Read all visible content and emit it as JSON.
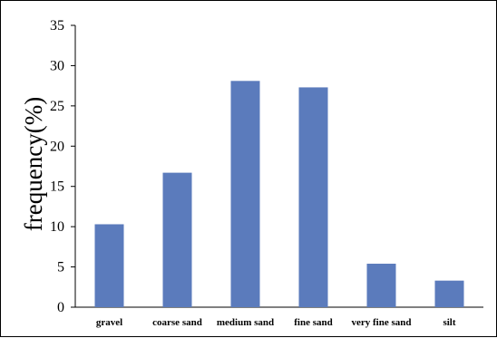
{
  "chart_data": {
    "type": "bar",
    "categories": [
      "gravel",
      "coarse sand",
      "medium sand",
      "fine sand",
      "very fine sand",
      "silt"
    ],
    "values": [
      10.3,
      16.7,
      28.1,
      27.3,
      5.4,
      3.3
    ],
    "title": "",
    "xlabel": "",
    "ylabel": "frequency(%)",
    "ylim": [
      0,
      35
    ],
    "yticks": [
      "0",
      "5",
      "10",
      "15",
      "20",
      "25",
      "30",
      "35"
    ],
    "bar_color": "#5b7bbc",
    "grid": false,
    "legend": "none"
  }
}
